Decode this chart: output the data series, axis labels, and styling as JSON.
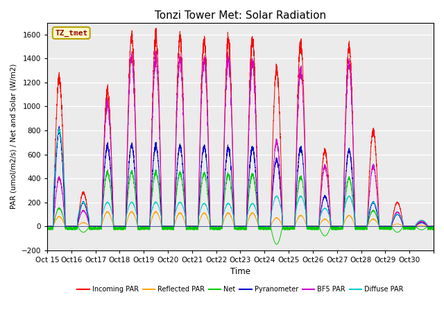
{
  "title": "Tonzi Tower Met: Solar Radiation",
  "ylabel": "PAR (umol/m2/s) / Net and Solar (W/m2)",
  "xlabel": "Time",
  "ylim": [
    -200,
    1700
  ],
  "yticks": [
    -200,
    0,
    200,
    400,
    600,
    800,
    1000,
    1200,
    1400,
    1600
  ],
  "n_days": 16,
  "x_tick_labels": [
    "Oct 15",
    "Oct 16",
    "Oct 17",
    "Oct 18",
    "Oct 19",
    "Oct 20",
    "Oct 21",
    "Oct 22",
    "Oct 23",
    "Oct 24",
    "Oct 25",
    "Oct 26",
    "Oct 27",
    "Oct 28",
    "Oct 29",
    "Oct 30"
  ],
  "legend_label_box": "TZ_tmet",
  "par_peaks": [
    1230,
    280,
    1130,
    1570,
    1580,
    1560,
    1540,
    1550,
    1540,
    1300,
    1520,
    630,
    1490,
    790,
    200,
    50
  ],
  "pyran_peaks": [
    800,
    200,
    670,
    670,
    670,
    660,
    660,
    650,
    650,
    550,
    650,
    250,
    630,
    200,
    100,
    30
  ],
  "bf5_peaks": [
    400,
    130,
    1020,
    1400,
    1400,
    1380,
    1380,
    1390,
    1360,
    700,
    1300,
    500,
    1350,
    500,
    120,
    40
  ],
  "net_peaks": [
    150,
    -50,
    450,
    450,
    450,
    440,
    440,
    430,
    430,
    -150,
    410,
    -80,
    400,
    130,
    -50,
    -30
  ],
  "diffuse_peaks": [
    800,
    200,
    200,
    200,
    200,
    200,
    190,
    190,
    190,
    250,
    250,
    150,
    250,
    200,
    100,
    50
  ],
  "reflected_peaks": [
    80,
    30,
    120,
    120,
    120,
    110,
    110,
    110,
    110,
    70,
    90,
    60,
    90,
    60,
    20,
    10
  ],
  "series": [
    {
      "name": "Incoming PAR",
      "color": "#ff0000"
    },
    {
      "name": "Reflected PAR",
      "color": "#ffa500"
    },
    {
      "name": "Net",
      "color": "#00cc00"
    },
    {
      "name": "Pyranometer",
      "color": "#0000cc"
    },
    {
      "name": "BF5 PAR",
      "color": "#cc00cc"
    },
    {
      "name": "Diffuse PAR",
      "color": "#00cccc"
    }
  ]
}
